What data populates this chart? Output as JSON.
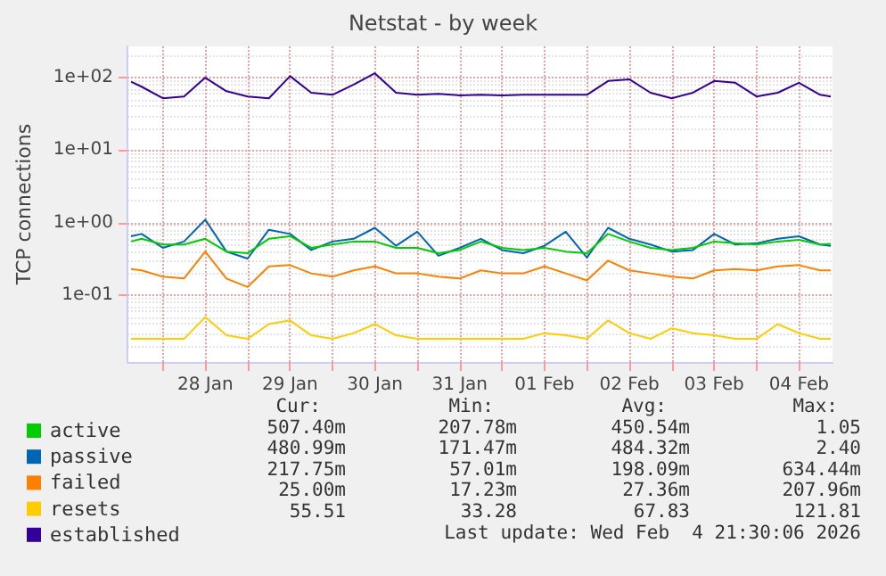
{
  "chart_data": {
    "type": "line",
    "title": "Netstat - by week",
    "ylabel": "TCP connections",
    "log": "y",
    "grid": true,
    "legend": "bottom left",
    "marker": "none",
    "ylim": [
      0.012,
      270
    ],
    "yticks": [
      {
        "value": 0.1,
        "label": "1e-01"
      },
      {
        "value": 1,
        "label": "1e+00"
      },
      {
        "value": 10,
        "label": "1e+01"
      },
      {
        "value": 100,
        "label": "1e+02"
      }
    ],
    "xlim": [
      "2026-01-27T14:00",
      "2026-02-04T21:30"
    ],
    "xticks": [
      {
        "value": "2026-01-28T00:00",
        "label": null
      },
      {
        "value": "2026-01-28T12:00",
        "label": "28 Jan"
      },
      {
        "value": "2026-01-29T00:00",
        "label": null
      },
      {
        "value": "2026-01-29T12:00",
        "label": "29 Jan"
      },
      {
        "value": "2026-01-30T00:00",
        "label": null
      },
      {
        "value": "2026-01-30T12:00",
        "label": "30 Jan"
      },
      {
        "value": "2026-01-31T00:00",
        "label": null
      },
      {
        "value": "2026-01-31T12:00",
        "label": "31 Jan"
      },
      {
        "value": "2026-02-01T00:00",
        "label": null
      },
      {
        "value": "2026-02-01T12:00",
        "label": "01 Feb"
      },
      {
        "value": "2026-02-02T00:00",
        "label": null
      },
      {
        "value": "2026-02-02T12:00",
        "label": "02 Feb"
      },
      {
        "value": "2026-02-03T00:00",
        "label": null
      },
      {
        "value": "2026-02-03T12:00",
        "label": "03 Feb"
      },
      {
        "value": "2026-02-04T00:00",
        "label": null
      },
      {
        "value": "2026-02-04T12:00",
        "label": "04 Feb"
      }
    ],
    "x": [
      "2026-01-27T15:00",
      "2026-01-27T18:00",
      "2026-01-28T00:00",
      "2026-01-28T06:00",
      "2026-01-28T12:00",
      "2026-01-28T18:00",
      "2026-01-29T00:00",
      "2026-01-29T06:00",
      "2026-01-29T12:00",
      "2026-01-29T18:00",
      "2026-01-30T00:00",
      "2026-01-30T06:00",
      "2026-01-30T12:00",
      "2026-01-30T18:00",
      "2026-01-31T00:00",
      "2026-01-31T06:00",
      "2026-01-31T12:00",
      "2026-01-31T18:00",
      "2026-02-01T00:00",
      "2026-02-01T06:00",
      "2026-02-01T12:00",
      "2026-02-01T18:00",
      "2026-02-02T00:00",
      "2026-02-02T06:00",
      "2026-02-02T12:00",
      "2026-02-02T18:00",
      "2026-02-03T00:00",
      "2026-02-03T06:00",
      "2026-02-03T12:00",
      "2026-02-03T18:00",
      "2026-02-04T00:00",
      "2026-02-04T06:00",
      "2026-02-04T12:00",
      "2026-02-04T18:00",
      "2026-02-04T21:00"
    ],
    "series": [
      {
        "name": "active",
        "color": "#00cc00",
        "values": [
          0.55,
          0.6,
          0.5,
          0.5,
          0.6,
          0.4,
          0.38,
          0.6,
          0.65,
          0.45,
          0.5,
          0.55,
          0.55,
          0.45,
          0.45,
          0.38,
          0.42,
          0.55,
          0.45,
          0.42,
          0.45,
          0.4,
          0.38,
          0.7,
          0.55,
          0.45,
          0.42,
          0.45,
          0.55,
          0.52,
          0.5,
          0.55,
          0.58,
          0.5,
          0.51
        ]
      },
      {
        "name": "passive",
        "color": "#0066b3",
        "values": [
          0.65,
          0.7,
          0.45,
          0.55,
          1.1,
          0.4,
          0.32,
          0.8,
          0.7,
          0.42,
          0.55,
          0.6,
          0.85,
          0.48,
          0.75,
          0.35,
          0.45,
          0.6,
          0.42,
          0.38,
          0.48,
          0.75,
          0.33,
          0.85,
          0.6,
          0.5,
          0.4,
          0.42,
          0.7,
          0.5,
          0.52,
          0.6,
          0.65,
          0.5,
          0.48
        ]
      },
      {
        "name": "failed",
        "color": "#ff8000",
        "values": [
          0.23,
          0.22,
          0.18,
          0.17,
          0.4,
          0.17,
          0.13,
          0.25,
          0.26,
          0.2,
          0.18,
          0.22,
          0.25,
          0.2,
          0.2,
          0.18,
          0.17,
          0.22,
          0.2,
          0.2,
          0.25,
          0.2,
          0.16,
          0.3,
          0.22,
          0.2,
          0.18,
          0.17,
          0.22,
          0.23,
          0.22,
          0.25,
          0.26,
          0.22,
          0.22
        ]
      },
      {
        "name": "resets",
        "color": "#ffcc00",
        "values": [
          0.025,
          0.025,
          0.025,
          0.025,
          0.05,
          0.028,
          0.025,
          0.04,
          0.045,
          0.028,
          0.025,
          0.03,
          0.04,
          0.028,
          0.025,
          0.025,
          0.025,
          0.025,
          0.025,
          0.025,
          0.03,
          0.028,
          0.025,
          0.045,
          0.03,
          0.025,
          0.035,
          0.03,
          0.028,
          0.025,
          0.025,
          0.04,
          0.03,
          0.025,
          0.025
        ]
      },
      {
        "name": "established",
        "color": "#330099",
        "values": [
          88,
          75,
          52,
          55,
          100,
          65,
          55,
          52,
          105,
          62,
          58,
          80,
          115,
          62,
          58,
          60,
          57,
          58,
          57,
          58,
          58,
          58,
          58,
          90,
          95,
          62,
          52,
          62,
          90,
          85,
          55,
          62,
          85,
          58,
          55
        ]
      }
    ],
    "annotations": [
      "Cur:",
      "Min:",
      "Avg:",
      "Max:",
      "507.40m",
      "207.78m",
      "450.54m",
      "1.05",
      "480.99m",
      "171.47m",
      "484.32m",
      "2.40",
      "217.75m",
      "57.01m",
      "198.09m",
      "634.44m",
      "25.00m",
      "17.23m",
      "27.36m",
      "207.96m",
      "55.51",
      "33.28",
      "67.83",
      "121.81",
      "Last update: Wed Feb  4 21:30:06 2026"
    ]
  }
}
